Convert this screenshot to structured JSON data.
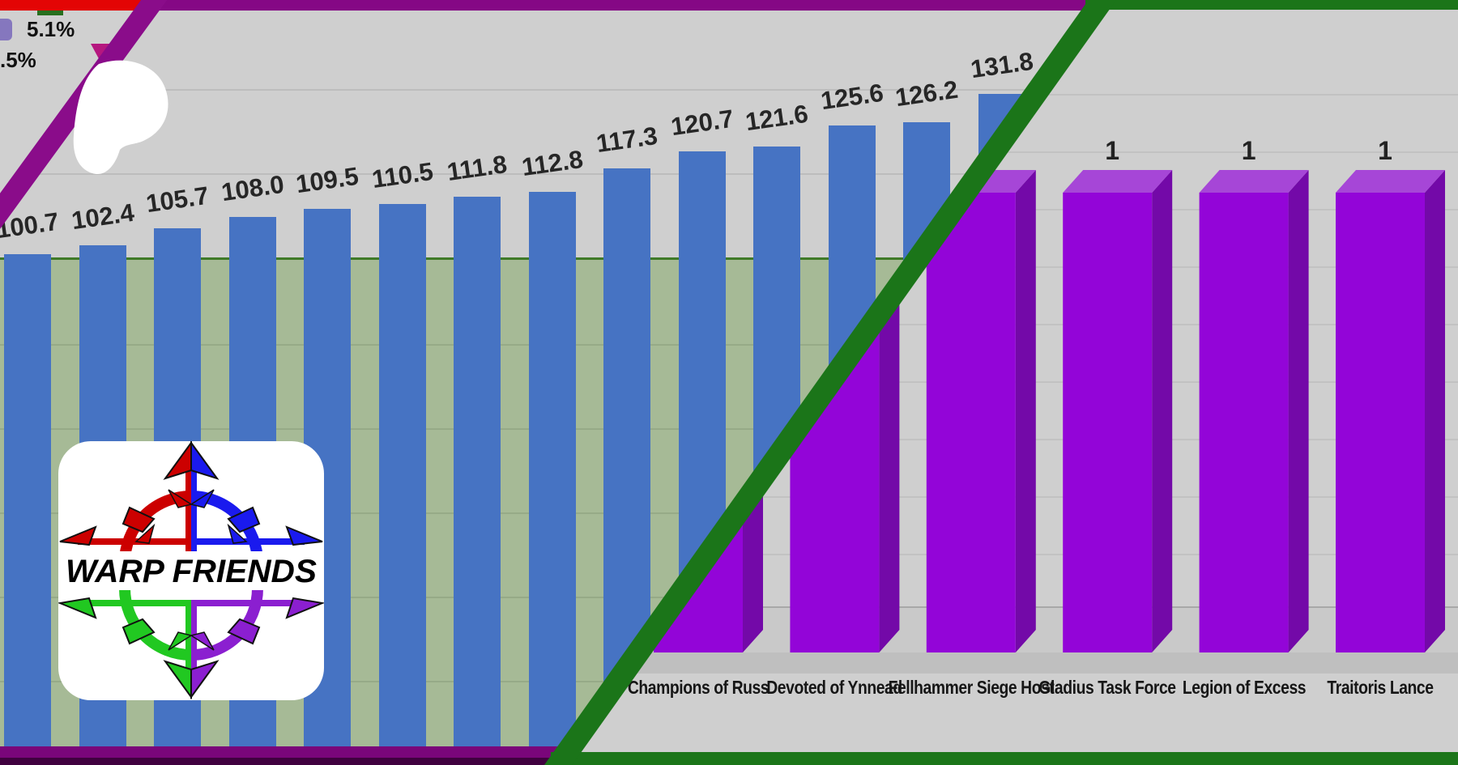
{
  "chart_data": [
    {
      "type": "bar",
      "title": "",
      "xlabel": "",
      "ylabel": "",
      "categories": [
        "",
        "",
        "",
        "",
        "",
        "",
        "",
        "",
        "",
        "",
        "",
        "",
        "",
        ""
      ],
      "values": [
        100.7,
        102.4,
        105.7,
        108.0,
        109.5,
        110.5,
        111.8,
        112.8,
        117.3,
        120.7,
        121.6,
        125.6,
        126.2,
        131.8
      ],
      "data_labels": [
        "100.7",
        "102.4",
        "105.7",
        "108.0",
        "109.5",
        "110.5",
        "111.8",
        "112.8",
        "117.3",
        "120.7",
        "121.6",
        "125.6",
        "126.2",
        "131.8"
      ],
      "bar_color": "#4673C3",
      "background_color": "#CFCFCF",
      "border_frame_color": "#850885",
      "highlight_region": {
        "threshold_value": 100,
        "line_color": "#3F7A28",
        "fill_color": "#A6BA96"
      },
      "grid": "horizontal",
      "axis_labels_visible": false
    },
    {
      "type": "bar",
      "style": "3d",
      "title": "",
      "xlabel": "",
      "ylabel": "",
      "categories": [
        "Champions of Russ",
        "Devoted of Ynnead",
        "Fellhammer Siege Host",
        "Gladius Task Force",
        "Legion of Excess",
        "Traitoris Lance"
      ],
      "values": [
        1,
        1,
        1,
        1,
        1,
        1
      ],
      "data_label": "1",
      "bar_front_color": "#9305D8",
      "bar_top_color": "#A646D7",
      "bar_side_color": "#7309A8",
      "background_color": "#CFCFCF",
      "border_frame_color": "#1B7519",
      "grid": "horizontal",
      "ylim": [
        0,
        1
      ]
    },
    {
      "type": "pie",
      "visible_legend_entries": [
        {
          "swatch_color": "#8577BE",
          "label": "5.1%"
        },
        {
          "swatch_color": "",
          "label": ".5%"
        },
        {
          "swatch_color": "",
          "label": "5"
        }
      ],
      "border_frame_color": "#E30505"
    }
  ],
  "logo": {
    "text": "WARP FRIENDS",
    "card_color": "#FFFFFF",
    "arrow_colors": {
      "upper_left": "#CC0000",
      "upper_right": "#1A1AEE",
      "lower_left": "#21C821",
      "lower_right": "#8B1FD0"
    },
    "text_color": "#000000"
  },
  "overlay": {
    "patreon_blob_color": "#FFFFFF",
    "border_red": "#E30505",
    "border_purple": "#8A0C8A",
    "border_purple_dark": "#40013F",
    "border_green": "#1B7519"
  }
}
